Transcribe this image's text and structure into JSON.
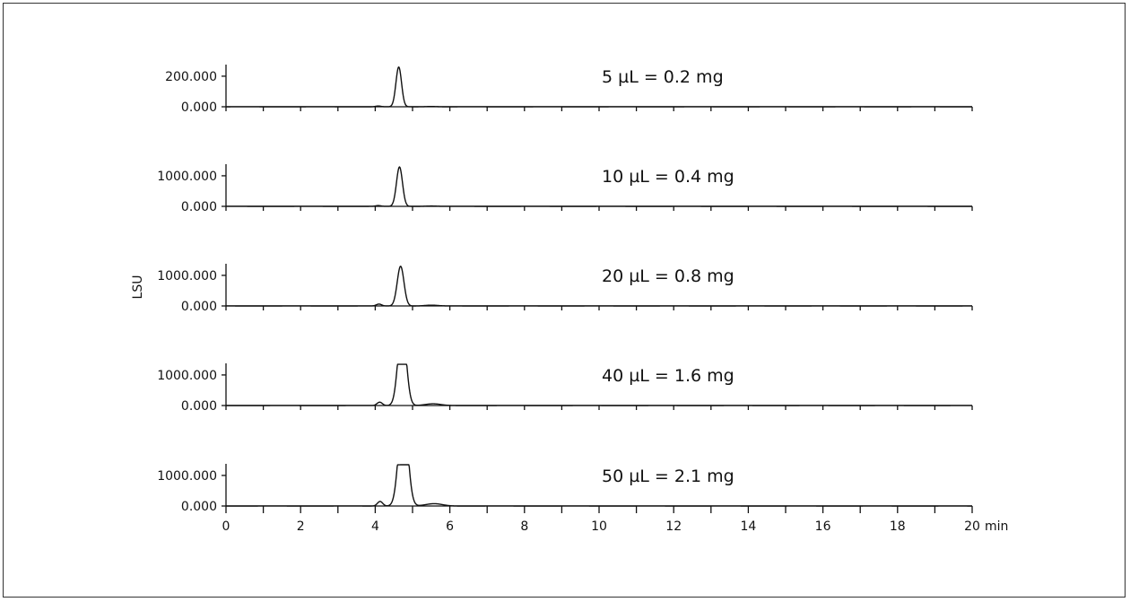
{
  "chart_data": {
    "type": "line",
    "ylabel": "LSU",
    "xunit": "min",
    "xlim": [
      0,
      20
    ],
    "xticks": [
      0,
      2,
      4,
      6,
      8,
      10,
      12,
      14,
      16,
      18,
      20
    ],
    "xtick_labels": [
      "0",
      "2",
      "4",
      "6",
      "8",
      "10",
      "12",
      "14",
      "16",
      "18",
      "20"
    ],
    "grid": false,
    "panels": [
      {
        "label": "5 µL = 0.2 mg",
        "ylim": [
          0,
          270
        ],
        "yticks": [
          0,
          200
        ],
        "ytick_labels": [
          "0.000",
          "200.000"
        ],
        "peaks": [
          {
            "rt": 4.08,
            "height": 5,
            "width": 0.07
          },
          {
            "rt": 4.63,
            "height": 260,
            "width": 0.075,
            "clip": 0
          },
          {
            "rt": 5.5,
            "height": 2,
            "width": 0.15
          }
        ]
      },
      {
        "label": "10 µL = 0.4 mg",
        "ylim": [
          0,
          1350
        ],
        "yticks": [
          0,
          1000
        ],
        "ytick_labels": [
          "0.000",
          "1000.000"
        ],
        "peaks": [
          {
            "rt": 4.08,
            "height": 25,
            "width": 0.07
          },
          {
            "rt": 4.65,
            "height": 1290,
            "width": 0.08,
            "clip": 0
          },
          {
            "rt": 5.5,
            "height": 12,
            "width": 0.15
          }
        ]
      },
      {
        "label": "20 µL = 0.8 mg",
        "ylim": [
          0,
          1350
        ],
        "yticks": [
          0,
          1000
        ],
        "ytick_labels": [
          "0.000",
          "1000.000"
        ],
        "peaks": [
          {
            "rt": 4.1,
            "height": 60,
            "width": 0.07
          },
          {
            "rt": 4.68,
            "height": 1300,
            "width": 0.09,
            "clip": 0
          },
          {
            "rt": 5.5,
            "height": 25,
            "width": 0.17
          }
        ]
      },
      {
        "label": "40 µL = 1.6 mg",
        "ylim": [
          0,
          1350
        ],
        "yticks": [
          0,
          1000
        ],
        "ytick_labels": [
          "0.000",
          "1000.000"
        ],
        "peaks": [
          {
            "rt": 4.12,
            "height": 110,
            "width": 0.07
          },
          {
            "rt": 4.72,
            "height": 2600,
            "width": 0.11,
            "clip": 1350
          },
          {
            "rt": 5.55,
            "height": 55,
            "width": 0.2
          }
        ]
      },
      {
        "label": "50 µL = 2.1 mg",
        "ylim": [
          0,
          1350
        ],
        "yticks": [
          0,
          1000
        ],
        "ytick_labels": [
          "0.000",
          "1000.000"
        ],
        "peaks": [
          {
            "rt": 4.13,
            "height": 150,
            "width": 0.07
          },
          {
            "rt": 4.75,
            "height": 3200,
            "width": 0.12,
            "clip": 1350
          },
          {
            "rt": 5.58,
            "height": 75,
            "width": 0.22
          }
        ]
      }
    ]
  }
}
